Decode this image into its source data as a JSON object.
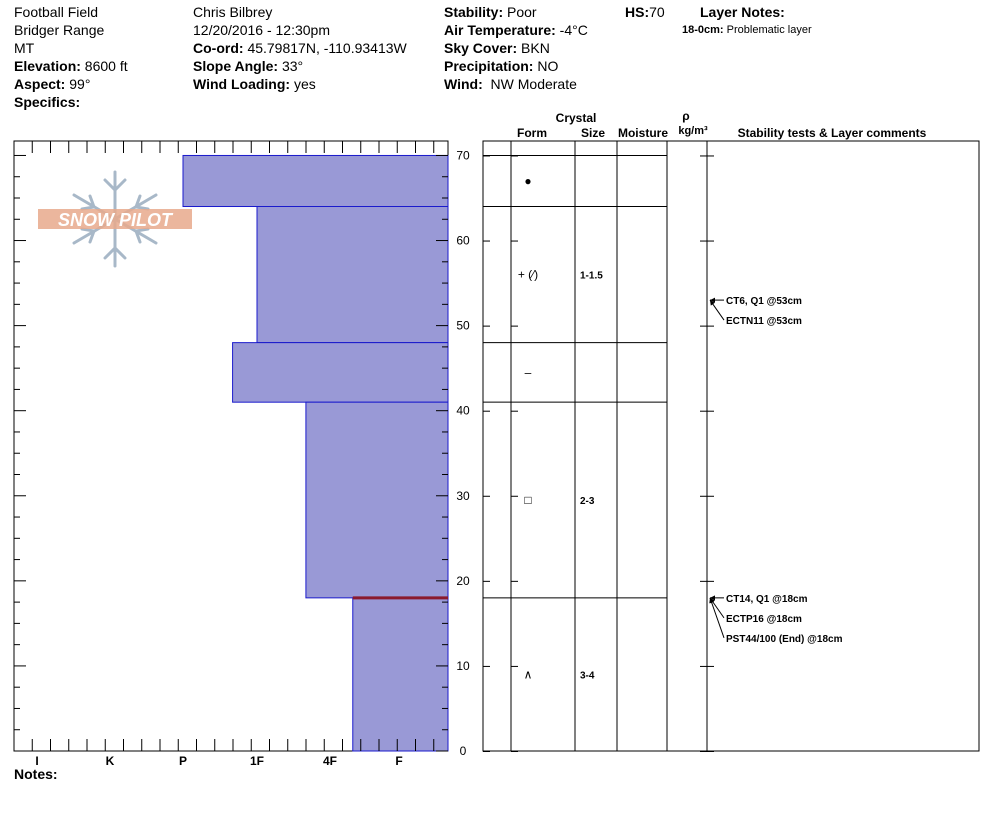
{
  "site": {
    "location": "Football Field",
    "range": "Bridger Range",
    "state": "MT",
    "elevation_label": "Elevation:",
    "elevation": "8600 ft",
    "aspect_label": "Aspect:",
    "aspect": "99°",
    "specifics_label": "Specifics:"
  },
  "observer": {
    "name": "Chris Bilbrey",
    "datetime": "12/20/2016 - 12:30pm",
    "coord_label": "Co-ord:",
    "coord": "45.79817N, -110.93413W",
    "slope_label": "Slope Angle:",
    "slope": "33°",
    "wind_loading_label": "Wind Loading:",
    "wind_loading": "yes"
  },
  "conditions": {
    "stability_label": "Stability:",
    "stability": "Poor",
    "air_temp_label": "Air Temperature:",
    "air_temp": "-4°C",
    "sky_label": "Sky Cover:",
    "sky": "BKN",
    "precip_label": "Precipitation:",
    "precip": "NO",
    "wind_label": "Wind:",
    "wind": "NW Moderate"
  },
  "hs": {
    "label": "HS:",
    "value": "70"
  },
  "layer_notes": {
    "label": "Layer Notes:",
    "note_depth": "18-0cm:",
    "note_text": "Problematic layer"
  },
  "notes_label": "Notes:",
  "logo_text": "SNOW PILOT",
  "table_headers": {
    "crystal": "Crystal",
    "form": "Form",
    "size": "Size",
    "moisture": "Moisture",
    "rho": "ρ",
    "density_unit": "kg/m³",
    "comments": "Stability tests & Layer comments"
  },
  "colors": {
    "layer_fill": "#9999d6",
    "layer_stroke": "#1a1acc",
    "problem_layer_line": "#8b1a2e",
    "logo_orange": "#e8a98c",
    "logo_blue": "#a8b8c8"
  },
  "chart_data": {
    "type": "snow_profile",
    "height_axis": {
      "min": 0,
      "max": 70,
      "ticks": [
        0,
        10,
        20,
        30,
        40,
        50,
        60,
        70
      ],
      "unit": "cm"
    },
    "hardness_axis": {
      "labels": [
        "I",
        "K",
        "P",
        "1F",
        "4F",
        "F"
      ]
    },
    "layers": [
      {
        "top": 70,
        "bottom": 64,
        "hardness": "P",
        "hardness_index": 3.0,
        "form": "●",
        "size": ""
      },
      {
        "top": 64,
        "bottom": 48,
        "hardness": "1F",
        "hardness_index": 4.0,
        "form": "+ (⁄)",
        "size": "1-1.5"
      },
      {
        "top": 48,
        "bottom": 41,
        "hardness": "P-1F",
        "hardness_index": 3.67,
        "form": "–",
        "size": ""
      },
      {
        "top": 41,
        "bottom": 18,
        "hardness": "4F-1F",
        "hardness_index": 4.67,
        "form": "□",
        "size": "2-3"
      },
      {
        "top": 18,
        "bottom": 0,
        "hardness": "4F",
        "hardness_index": 5.33,
        "form": "∧",
        "size": "3-4"
      }
    ],
    "problem_layer_height": 18,
    "tests": [
      {
        "height": 53,
        "label": "CT6, Q1 @53cm"
      },
      {
        "height": 53,
        "label": "ECTN11 @53cm"
      },
      {
        "height": 18,
        "label": "CT14, Q1 @18cm"
      },
      {
        "height": 18,
        "label": "ECTP16 @18cm"
      },
      {
        "height": 18,
        "label": "PST44/100 (End) @18cm"
      }
    ]
  }
}
